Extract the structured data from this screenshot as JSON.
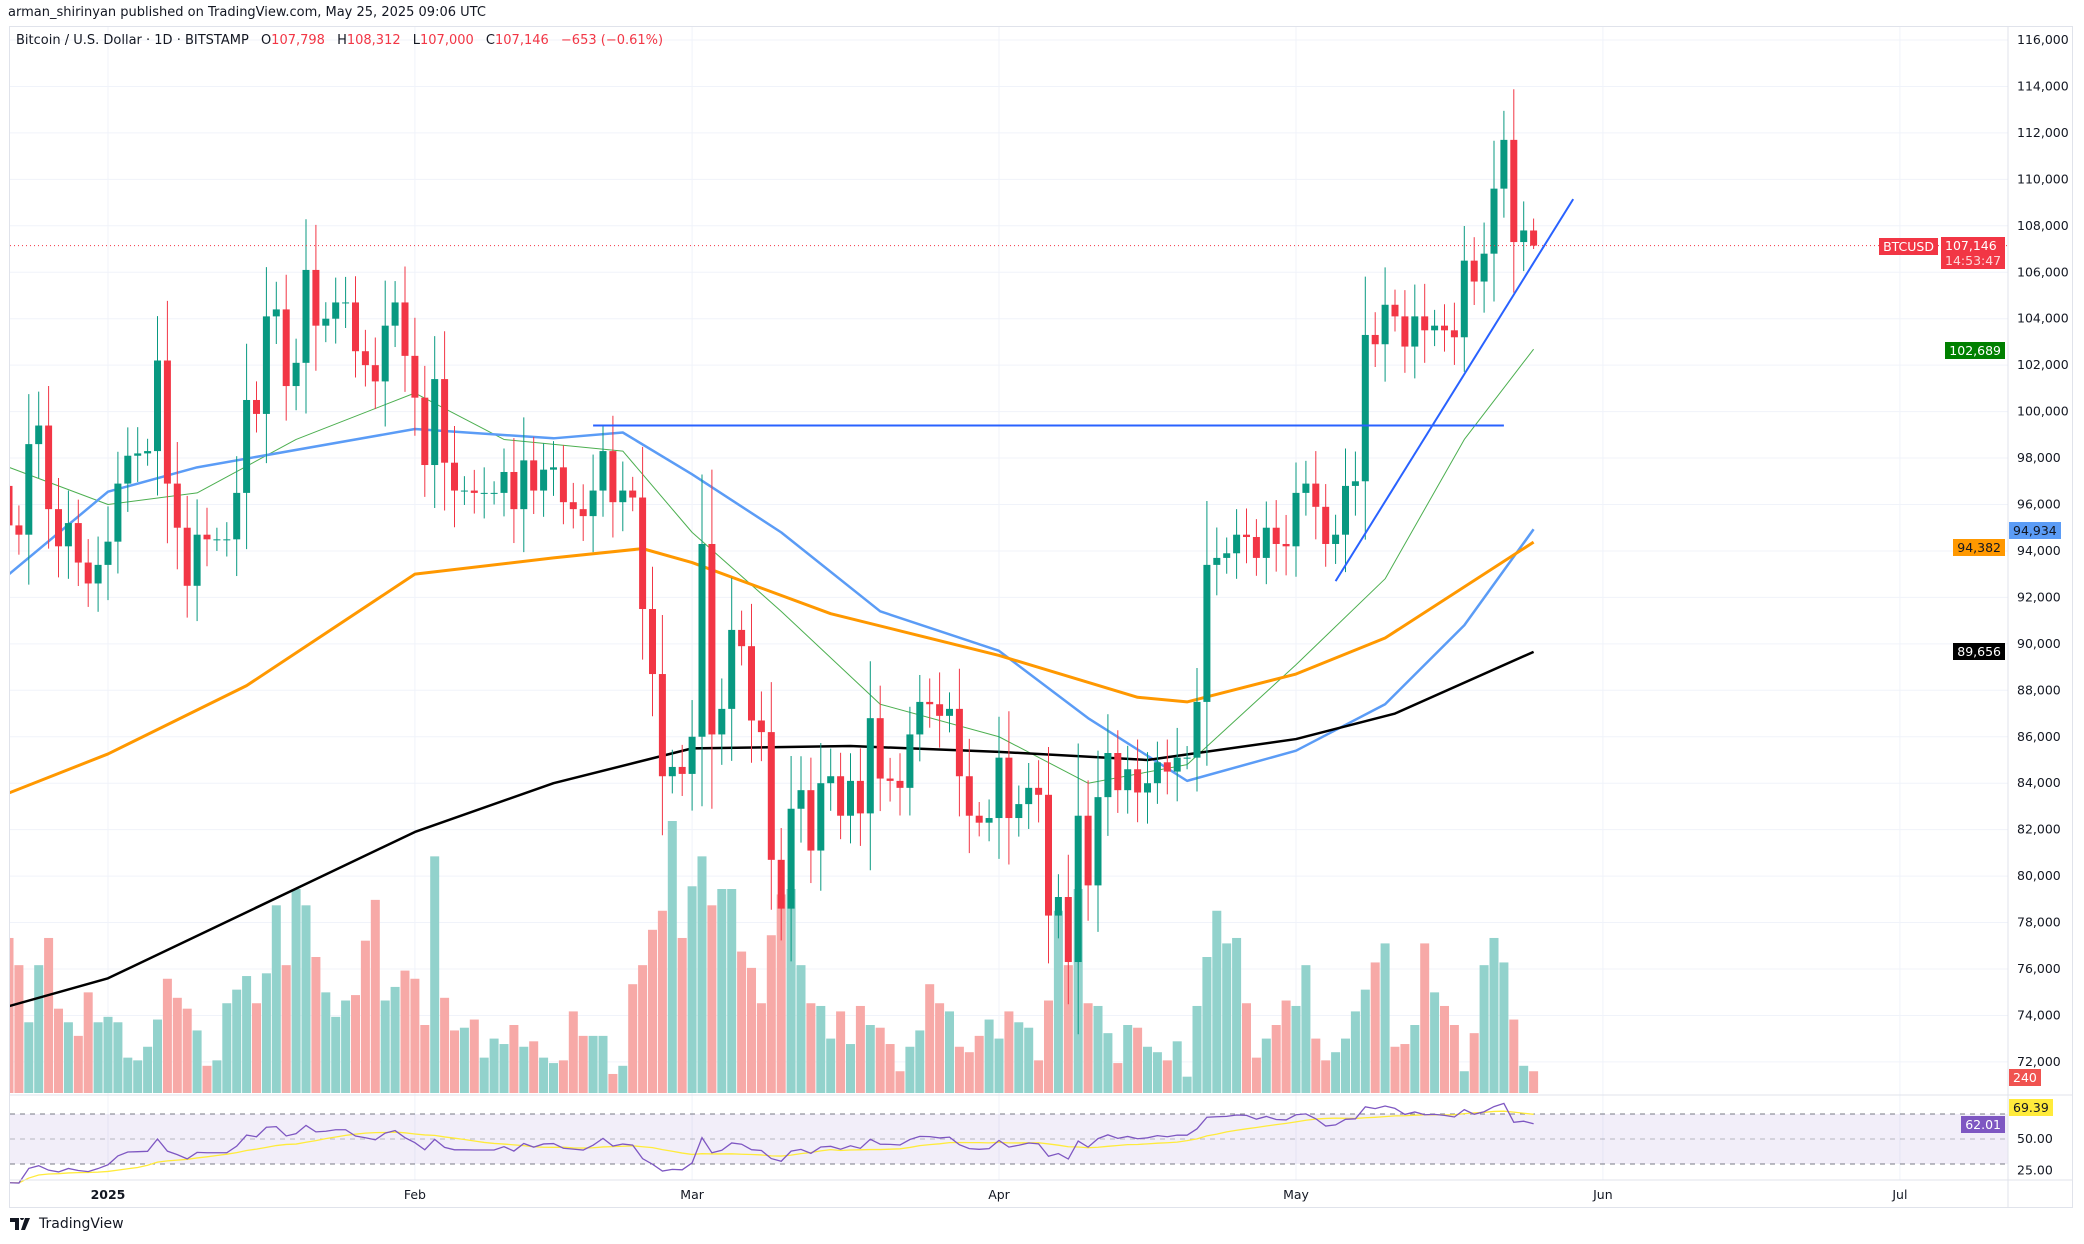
{
  "publisher_line": "arman_shirinyan published on TradingView.com, May 25, 2025 09:06 UTC",
  "legend": {
    "symbol": "Bitcoin / U.S. Dollar · 1D · BITSTAMP",
    "o_label": "O",
    "o": "107,798",
    "h_label": "H",
    "h": "108,312",
    "l_label": "L",
    "l": "107,000",
    "c_label": "C",
    "c": "107,146",
    "change": "−653 (−0.61%)"
  },
  "badges": {
    "symbol": "BTCUSD",
    "last_price": "107,146",
    "countdown": "14:53:47",
    "ma20": "102,689",
    "ma50": "94,934",
    "ma100": "94,382",
    "ma200": "89,656",
    "volume": "240",
    "rsi_ma": "69.39",
    "rsi": "62.01"
  },
  "colors": {
    "up": "#089981",
    "down": "#f23645",
    "vol_up": "#92d2cc",
    "vol_down": "#f7a9a7",
    "ma20": "#4caf50",
    "ma50": "#5b9cf6",
    "ma100": "#ff9800",
    "ma200": "#000000",
    "trend": "#2962ff",
    "rsi": "#7e57c2",
    "rsi_ma": "#ffeb3b"
  },
  "branding": "TradingView",
  "chart_data": {
    "type": "candlestick",
    "title": "Bitcoin / U.S. Dollar · 1D · BITSTAMP",
    "start_date": "2024-12-22",
    "end_date": "2025-05-25",
    "ylim": [
      71000,
      117000
    ],
    "y_ticks": [
      "116,000",
      "114,000",
      "112,000",
      "110,000",
      "108,000",
      "106,000",
      "104,000",
      "102,000",
      "100,000",
      "98,000",
      "96,000",
      "94,000",
      "92,000",
      "90,000",
      "88,000",
      "86,000",
      "84,000",
      "82,000",
      "80,000",
      "78,000",
      "76,000",
      "74,000",
      "72,000"
    ],
    "x_ticks": [
      {
        "label": "2025",
        "day": 10
      },
      {
        "label": "Feb",
        "day": 41
      },
      {
        "label": "Mar",
        "day": 69
      },
      {
        "label": "Apr",
        "day": 100
      },
      {
        "label": "May",
        "day": 130
      },
      {
        "label": "Jun",
        "day": 161
      },
      {
        "label": "Jul",
        "day": 191
      }
    ],
    "rsi_ticks": [
      "50.00",
      "25.00"
    ],
    "first_open": 96800,
    "last_ohlc": [
      107798,
      108312,
      107000,
      107146
    ],
    "close": [
      95100,
      94700,
      98600,
      99400,
      95800,
      94200,
      95200,
      93500,
      92600,
      93400,
      94400,
      96900,
      98100,
      98200,
      98300,
      102200,
      96900,
      95000,
      92500,
      94700,
      94500,
      94500,
      94500,
      96500,
      100500,
      99900,
      104100,
      104400,
      101100,
      102100,
      106100,
      103700,
      104000,
      104700,
      104700,
      102600,
      102000,
      101300,
      103700,
      104700,
      102400,
      100600,
      97700,
      101400,
      97800,
      96600,
      96600,
      96500,
      96500,
      96500,
      97400,
      95800,
      97900,
      96600,
      97500,
      97600,
      96100,
      95800,
      95500,
      96600,
      98300,
      96100,
      96600,
      96300,
      91500,
      88700,
      84300,
      84700,
      84400,
      86000,
      94300,
      86100,
      87200,
      90600,
      89900,
      86700,
      86200,
      80700,
      78600,
      82900,
      83700,
      81100,
      84000,
      84300,
      82600,
      84100,
      82700,
      86800,
      84200,
      84100,
      83800,
      86100,
      87500,
      87400,
      86900,
      87200,
      84300,
      82600,
      82300,
      82500,
      85100,
      82500,
      83100,
      83800,
      83500,
      78300,
      79100,
      76300,
      82600,
      79600,
      83400,
      85300,
      83700,
      84600,
      83600,
      84000,
      84900,
      84500,
      85100,
      85100,
      87500,
      93400,
      93700,
      93900,
      94700,
      94600,
      93700,
      95000,
      94300,
      94200,
      96500,
      96900,
      95900,
      94300,
      94700,
      96800,
      97000,
      103300,
      102900,
      104600,
      104100,
      102800,
      104100,
      103500,
      103700,
      103500,
      103200,
      106500,
      105600,
      106800,
      109600,
      111700,
      107300,
      107800,
      107146
    ],
    "volume_relative": [
      57,
      47,
      26,
      47,
      57,
      31,
      26,
      21,
      37,
      26,
      28,
      26,
      13,
      12,
      17,
      27,
      42,
      35,
      31,
      23,
      10,
      12,
      33,
      38,
      43,
      33,
      44,
      69,
      47,
      75,
      69,
      50,
      37,
      28,
      34,
      36,
      56,
      71,
      34,
      39,
      45,
      42,
      25,
      87,
      35,
      23,
      24,
      27,
      13,
      20,
      18,
      25,
      17,
      19,
      13,
      11,
      12,
      30,
      21,
      21,
      21,
      7,
      10,
      40,
      47,
      60,
      67,
      100,
      57,
      76,
      87,
      69,
      75,
      75,
      52,
      46,
      33,
      58,
      73,
      75,
      47,
      33,
      32,
      20,
      30,
      18,
      32,
      25,
      24,
      18,
      8,
      17,
      23,
      40,
      33,
      30,
      17,
      15,
      21,
      27,
      20,
      30,
      26,
      24,
      12,
      34,
      67,
      47,
      75,
      33,
      32,
      22,
      11,
      25,
      24,
      17,
      15,
      12,
      19,
      6,
      32,
      50,
      67,
      55,
      57,
      33,
      13,
      20,
      25,
      34,
      32,
      47,
      20,
      12,
      15,
      20,
      30,
      38,
      48,
      55,
      17,
      18,
      25,
      55,
      37,
      32,
      25,
      8,
      22,
      47,
      57,
      48,
      27,
      10,
      8
    ],
    "moving_averages": [
      {
        "name": "MA20",
        "points": [
          [
            0,
            97600
          ],
          [
            10,
            96000
          ],
          [
            19,
            96500
          ],
          [
            29,
            98800
          ],
          [
            41,
            100800
          ],
          [
            50,
            98800
          ],
          [
            62,
            98300
          ],
          [
            69,
            94800
          ],
          [
            78,
            91400
          ],
          [
            88,
            87400
          ],
          [
            100,
            86000
          ],
          [
            109,
            84000
          ],
          [
            119,
            84800
          ],
          [
            130,
            89100
          ],
          [
            139,
            92800
          ],
          [
            147,
            98800
          ],
          [
            154,
            102689
          ]
        ]
      },
      {
        "name": "MA50",
        "points": [
          [
            0,
            93000
          ],
          [
            10,
            96550
          ],
          [
            19,
            97600
          ],
          [
            41,
            99250
          ],
          [
            55,
            98850
          ],
          [
            62,
            99100
          ],
          [
            69,
            97300
          ],
          [
            78,
            94800
          ],
          [
            88,
            91400
          ],
          [
            100,
            89700
          ],
          [
            109,
            86800
          ],
          [
            119,
            84100
          ],
          [
            130,
            85400
          ],
          [
            139,
            87400
          ],
          [
            147,
            90800
          ],
          [
            154,
            94934
          ]
        ]
      },
      {
        "name": "MA100",
        "points": [
          [
            0,
            83580
          ],
          [
            10,
            85260
          ],
          [
            24,
            88200
          ],
          [
            41,
            93000
          ],
          [
            55,
            93700
          ],
          [
            64,
            94100
          ],
          [
            69,
            93500
          ],
          [
            83,
            91300
          ],
          [
            100,
            89500
          ],
          [
            114,
            87700
          ],
          [
            119,
            87500
          ],
          [
            130,
            88700
          ],
          [
            139,
            90250
          ],
          [
            154,
            94382
          ]
        ]
      },
      {
        "name": "MA200",
        "points": [
          [
            0,
            74400
          ],
          [
            10,
            75600
          ],
          [
            41,
            81900
          ],
          [
            55,
            84000
          ],
          [
            69,
            85500
          ],
          [
            85,
            85600
          ],
          [
            100,
            85350
          ],
          [
            115,
            85000
          ],
          [
            130,
            85900
          ],
          [
            140,
            87000
          ],
          [
            154,
            89656
          ]
        ]
      }
    ],
    "trendlines": [
      {
        "name": "resistance-horizontal",
        "from": [
          59,
          99400
        ],
        "to": [
          151,
          99400
        ]
      },
      {
        "name": "support-diagonal",
        "from": [
          134,
          92700
        ],
        "to": [
          158,
          109150
        ]
      }
    ],
    "rsi_levels": [
      70,
      50,
      30
    ]
  }
}
